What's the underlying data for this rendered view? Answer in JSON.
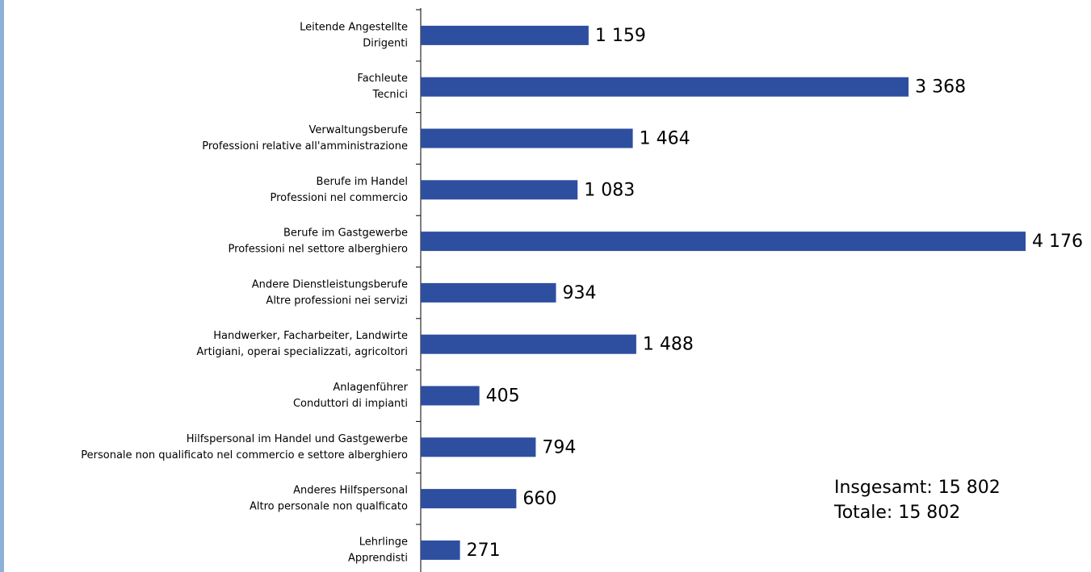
{
  "chart_data": {
    "type": "hbar",
    "categories": [
      [
        "Leitende Angestellte",
        "Dirigenti"
      ],
      [
        "Fachleute",
        "Tecnici"
      ],
      [
        "Verwaltungsberufe",
        "Professioni relative all'amministrazione"
      ],
      [
        "Berufe im Handel",
        "Professioni nel commercio"
      ],
      [
        "Berufe im Gastgewerbe",
        "Professioni nel settore alberghiero"
      ],
      [
        "Andere Dienstleistungsberufe",
        "Altre professioni nei servizi"
      ],
      [
        "Handwerker, Facharbeiter, Landwirte",
        "Artigiani, operai specializzati, agricoltori"
      ],
      [
        "Anlagenführer",
        "Conduttori di impianti"
      ],
      [
        "Hilfspersonal im Handel und Gastgewerbe",
        "Personale non qualificato nel commercio e settore alberghiero"
      ],
      [
        "Anderes Hilfspersonal",
        "Altro personale non qualficato"
      ],
      [
        "Lehrlinge",
        "Apprendisti"
      ]
    ],
    "values": [
      1159,
      3368,
      1464,
      1083,
      4176,
      934,
      1488,
      405,
      794,
      660,
      271
    ],
    "value_labels": [
      "1 159",
      "3 368",
      "1 464",
      "1 083",
      "4 176",
      "934",
      "1 488",
      "405",
      "794",
      "660",
      "271"
    ],
    "color": "#2e4ea0",
    "annotations": [
      "Insgesamt: 15 802",
      "Totale: 15 802"
    ]
  }
}
